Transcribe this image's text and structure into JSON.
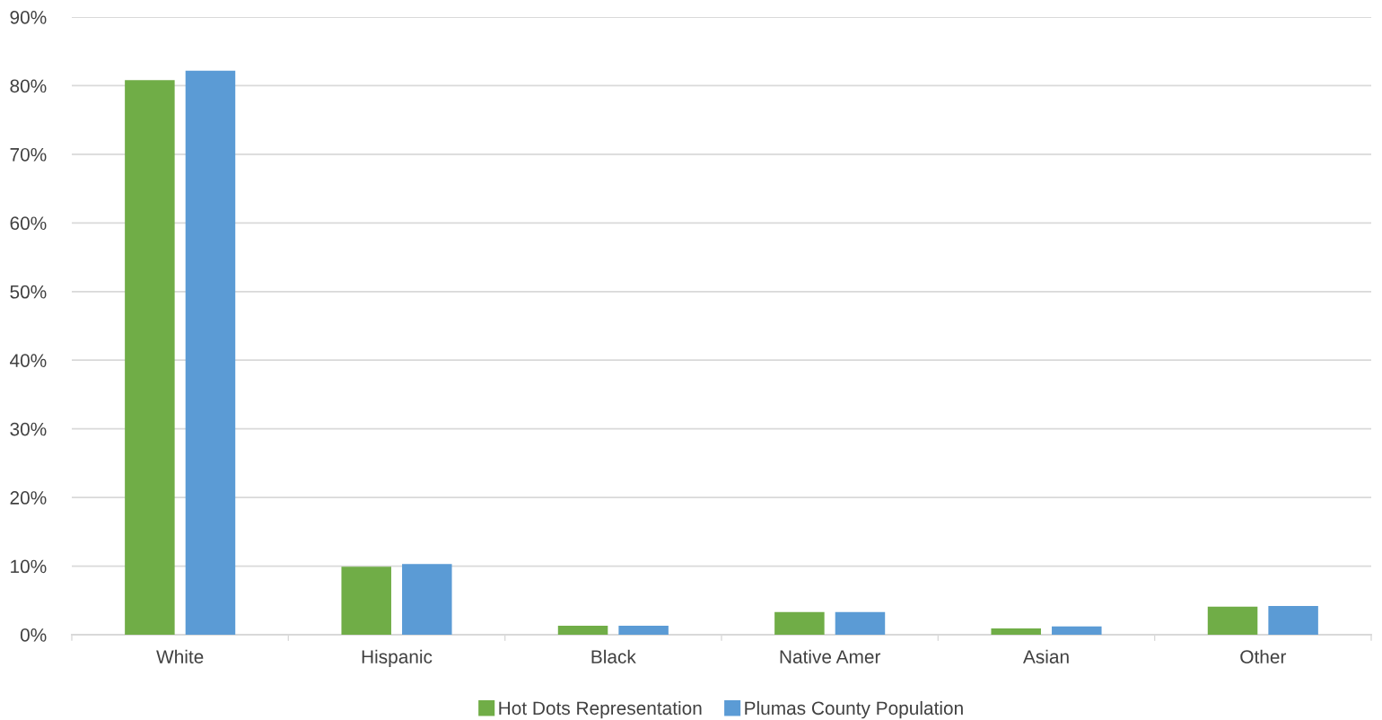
{
  "chart_data": {
    "type": "bar",
    "categories": [
      "White",
      "Hispanic",
      "Black",
      "Native Amer",
      "Asian",
      "Other"
    ],
    "series": [
      {
        "name": "Hot Dots Representation",
        "color": "#70ad47",
        "values": [
          80.8,
          9.9,
          1.3,
          3.3,
          0.9,
          4.1
        ]
      },
      {
        "name": "Plumas County Population",
        "color": "#5b9bd5",
        "values": [
          82.2,
          10.3,
          1.3,
          3.3,
          1.2,
          4.2
        ]
      }
    ],
    "ylim": [
      0,
      90
    ],
    "yticks": [
      {
        "value": 0,
        "label": "0%"
      },
      {
        "value": 10,
        "label": "10%"
      },
      {
        "value": 20,
        "label": "20%"
      },
      {
        "value": 30,
        "label": "30%"
      },
      {
        "value": 40,
        "label": "40%"
      },
      {
        "value": 50,
        "label": "50%"
      },
      {
        "value": 60,
        "label": "60%"
      },
      {
        "value": 70,
        "label": "70%"
      },
      {
        "value": 80,
        "label": "80%"
      },
      {
        "value": 90,
        "label": "90%"
      }
    ],
    "grid": "y",
    "legend": "bottom"
  }
}
